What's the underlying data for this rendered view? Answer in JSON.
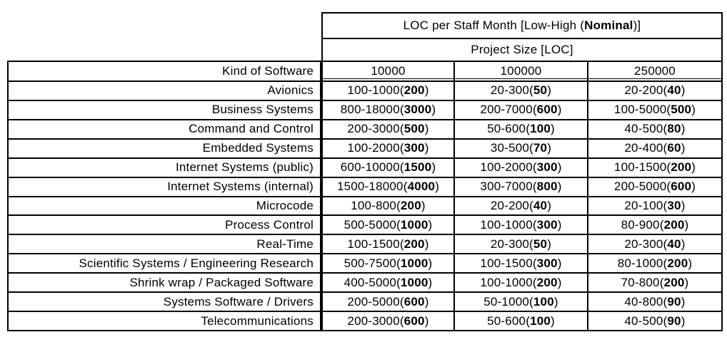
{
  "page": {
    "background_color": "#ffffff",
    "text_color": "#000000",
    "line_color": "#000000"
  },
  "table": {
    "title": {
      "prefix": "LOC per Staff Month [Low-High (",
      "bold": "Nominal",
      "suffix": ")]"
    },
    "subtitle": "Project Size [LOC]",
    "kind_header": "Kind of Software",
    "size_headers": [
      "10000",
      "100000",
      "250000"
    ],
    "rows": [
      {
        "kind": "Avionics",
        "cells": [
          {
            "range": "100-1000",
            "nominal": "200"
          },
          {
            "range": "20-300",
            "nominal": "50"
          },
          {
            "range": "20-200",
            "nominal": "40"
          }
        ]
      },
      {
        "kind": "Business Systems",
        "cells": [
          {
            "range": "800-18000",
            "nominal": "3000"
          },
          {
            "range": "200-7000",
            "nominal": "600"
          },
          {
            "range": "100-5000",
            "nominal": "500"
          }
        ]
      },
      {
        "kind": "Command and Control",
        "cells": [
          {
            "range": "200-3000",
            "nominal": "500"
          },
          {
            "range": "50-600",
            "nominal": "100"
          },
          {
            "range": "40-500",
            "nominal": "80"
          }
        ]
      },
      {
        "kind": "Embedded Systems",
        "cells": [
          {
            "range": "100-2000",
            "nominal": "300"
          },
          {
            "range": "30-500",
            "nominal": "70"
          },
          {
            "range": "20-400",
            "nominal": "60"
          }
        ]
      },
      {
        "kind": "Internet Systems (public)",
        "cells": [
          {
            "range": "600-10000",
            "nominal": "1500"
          },
          {
            "range": "100-2000",
            "nominal": "300"
          },
          {
            "range": "100-1500",
            "nominal": "200"
          }
        ]
      },
      {
        "kind": "Internet Systems (internal)",
        "cells": [
          {
            "range": "1500-18000",
            "nominal": "4000"
          },
          {
            "range": "300-7000",
            "nominal": "800"
          },
          {
            "range": "200-5000",
            "nominal": "600"
          }
        ]
      },
      {
        "kind": "Microcode",
        "cells": [
          {
            "range": "100-800",
            "nominal": "200"
          },
          {
            "range": "20-200",
            "nominal": "40"
          },
          {
            "range": "20-100",
            "nominal": "30"
          }
        ]
      },
      {
        "kind": "Process Control",
        "cells": [
          {
            "range": "500-5000",
            "nominal": "1000"
          },
          {
            "range": "100-1000",
            "nominal": "300"
          },
          {
            "range": "80-900",
            "nominal": "200"
          }
        ]
      },
      {
        "kind": "Real-Time",
        "cells": [
          {
            "range": "100-1500",
            "nominal": "200"
          },
          {
            "range": "20-300",
            "nominal": "50"
          },
          {
            "range": "20-300",
            "nominal": "40"
          }
        ]
      },
      {
        "kind": "Scientific Systems / Engineering Research",
        "cells": [
          {
            "range": "500-7500",
            "nominal": "1000"
          },
          {
            "range": "100-1500",
            "nominal": "300"
          },
          {
            "range": "80-1000",
            "nominal": "200"
          }
        ]
      },
      {
        "kind": "Shrink wrap / Packaged Software",
        "cells": [
          {
            "range": "400-5000",
            "nominal": "1000"
          },
          {
            "range": "100-1000",
            "nominal": "200"
          },
          {
            "range": "70-800",
            "nominal": "200"
          }
        ]
      },
      {
        "kind": "Systems Software / Drivers",
        "cells": [
          {
            "range": "200-5000",
            "nominal": "600"
          },
          {
            "range": "50-1000",
            "nominal": "100"
          },
          {
            "range": "40-800",
            "nominal": "90"
          }
        ]
      },
      {
        "kind": "Telecommunications",
        "cells": [
          {
            "range": "200-3000",
            "nominal": "600"
          },
          {
            "range": "50-600",
            "nominal": "100"
          },
          {
            "range": "40-500",
            "nominal": "90"
          }
        ]
      }
    ]
  }
}
